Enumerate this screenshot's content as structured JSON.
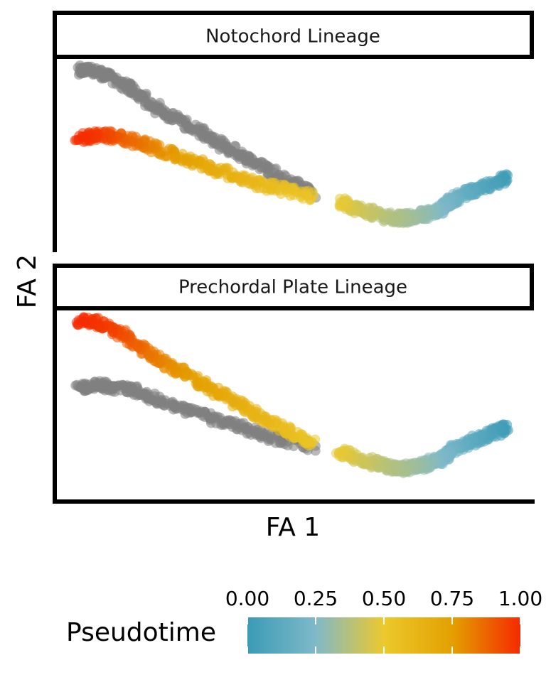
{
  "chart_data": {
    "type": "scatter",
    "xlabel": "FA 1",
    "ylabel": "FA 2",
    "colorbar": {
      "title": "Pseudotime",
      "range": [
        0,
        1
      ],
      "ticks": [
        "0.00",
        "0.25",
        "0.50",
        "0.75",
        "1.00"
      ],
      "tick_values": [
        0,
        0.25,
        0.5,
        0.75,
        1
      ],
      "palette": [
        "#3a9bb5",
        "#7fb9c9",
        "#ecc92c",
        "#e3a000",
        "#f52a00"
      ]
    },
    "inactive_color": "#7f7f7f",
    "panels": [
      {
        "label": "Notochord Lineage",
        "active_branch": "lower",
        "branches": {
          "shared": {
            "x": [
              1.0,
              0.97,
              0.93,
              0.9,
              0.87,
              0.85,
              0.82,
              0.79,
              0.76,
              0.72,
              0.68,
              0.64,
              0.61
            ],
            "y": [
              0.36,
              0.33,
              0.29,
              0.26,
              0.22,
              0.18,
              0.15,
              0.13,
              0.12,
              0.13,
              0.16,
              0.19,
              0.22
            ],
            "pseudotime": [
              0.0,
              0.05,
              0.1,
              0.15,
              0.2,
              0.24,
              0.28,
              0.31,
              0.34,
              0.37,
              0.41,
              0.45,
              0.49
            ]
          },
          "upper": {
            "x": [
              0.55,
              0.5,
              0.45,
              0.4,
              0.35,
              0.3,
              0.25,
              0.2,
              0.16,
              0.12,
              0.08,
              0.04,
              0.0
            ],
            "y": [
              0.27,
              0.33,
              0.4,
              0.47,
              0.54,
              0.61,
              0.68,
              0.75,
              0.82,
              0.89,
              0.95,
              0.99,
              1.0
            ],
            "pseudotime": null
          },
          "lower": {
            "x": [
              0.55,
              0.48,
              0.42,
              0.36,
              0.3,
              0.24,
              0.18,
              0.13,
              0.08,
              0.04,
              0.0
            ],
            "y": [
              0.25,
              0.29,
              0.33,
              0.38,
              0.43,
              0.48,
              0.54,
              0.58,
              0.61,
              0.61,
              0.59
            ],
            "pseudotime": [
              0.52,
              0.56,
              0.6,
              0.64,
              0.69,
              0.74,
              0.8,
              0.86,
              0.92,
              0.97,
              1.0
            ]
          }
        }
      },
      {
        "label": "Prechordal Plate Lineage",
        "active_branch": "upper",
        "branches": {
          "shared": {
            "x": [
              1.0,
              0.97,
              0.93,
              0.9,
              0.87,
              0.85,
              0.82,
              0.79,
              0.76,
              0.72,
              0.68,
              0.64,
              0.61
            ],
            "y": [
              0.36,
              0.33,
              0.29,
              0.26,
              0.22,
              0.18,
              0.15,
              0.13,
              0.12,
              0.13,
              0.16,
              0.19,
              0.22
            ],
            "pseudotime": [
              0.0,
              0.05,
              0.1,
              0.15,
              0.2,
              0.24,
              0.28,
              0.31,
              0.34,
              0.37,
              0.41,
              0.45,
              0.49
            ]
          },
          "upper": {
            "x": [
              0.55,
              0.5,
              0.45,
              0.4,
              0.35,
              0.3,
              0.25,
              0.2,
              0.16,
              0.12,
              0.08,
              0.04,
              0.0
            ],
            "y": [
              0.27,
              0.33,
              0.4,
              0.47,
              0.54,
              0.61,
              0.68,
              0.75,
              0.82,
              0.89,
              0.95,
              0.99,
              1.0
            ],
            "pseudotime": [
              0.52,
              0.56,
              0.6,
              0.64,
              0.68,
              0.72,
              0.76,
              0.8,
              0.85,
              0.9,
              0.95,
              0.98,
              1.0
            ]
          },
          "lower": {
            "x": [
              0.55,
              0.48,
              0.42,
              0.36,
              0.3,
              0.24,
              0.18,
              0.13,
              0.08,
              0.04,
              0.0
            ],
            "y": [
              0.25,
              0.29,
              0.33,
              0.38,
              0.43,
              0.48,
              0.54,
              0.58,
              0.61,
              0.61,
              0.59
            ],
            "pseudotime": null
          }
        }
      }
    ]
  }
}
